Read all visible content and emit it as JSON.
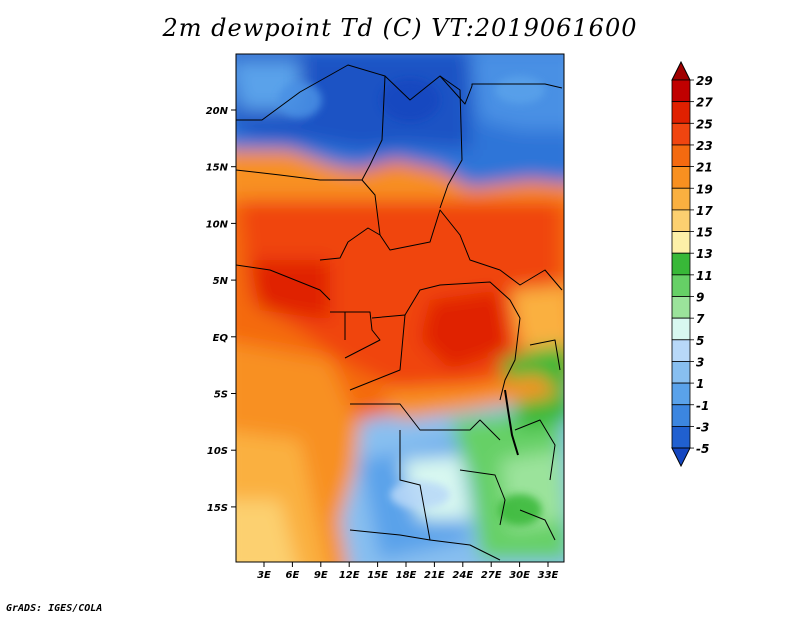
{
  "title": "2m dewpoint Td (C) VT:2019061600",
  "credit": "GrADS: IGES/COLA",
  "lat_labels": [
    "20N",
    "15N",
    "10N",
    "5N",
    "EQ",
    "5S",
    "10S",
    "15S"
  ],
  "lon_labels": [
    "3E",
    "6E",
    "9E",
    "12E",
    "15E",
    "18E",
    "21E",
    "24E",
    "27E",
    "30E",
    "33E"
  ],
  "colorbar": {
    "labels": [
      "29",
      "27",
      "25",
      "23",
      "21",
      "19",
      "17",
      "15",
      "13",
      "11",
      "9",
      "7",
      "5",
      "3",
      "1",
      "-1",
      "-3",
      "-5"
    ],
    "colors": [
      "#a00000",
      "#c00000",
      "#e02000",
      "#f04510",
      "#f46a10",
      "#f89020",
      "#fab040",
      "#fcd070",
      "#fdf0a8",
      "#38b838",
      "#66d066",
      "#9be39b",
      "#d8f8f0",
      "#b8d8f8",
      "#88bff0",
      "#5aa2ea",
      "#3c86e0",
      "#2060d0",
      "#1446c0"
    ]
  }
}
